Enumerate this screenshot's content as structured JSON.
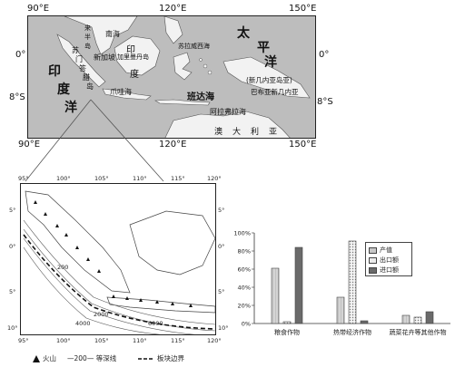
{
  "top_map": {
    "lon_labels": [
      "90°E",
      "120°E",
      "150°E"
    ],
    "lat_labels": [
      "0°",
      "8°S"
    ],
    "oceans": {
      "indian": [
        "印",
        "度",
        "洋"
      ],
      "pacific": [
        "太",
        "平",
        "洋"
      ]
    },
    "seas": {
      "south_china": "南海",
      "sulu": "苏拉威西海",
      "java": "爪哇海",
      "banda": "班达海",
      "arafura": "阿拉弗拉海"
    },
    "places": {
      "malay": [
        "来",
        "半",
        "岛"
      ],
      "sumatra": [
        "苏",
        "门",
        "答",
        "腊",
        "岛"
      ],
      "singapore": "新加坡",
      "kalimantan": "加里曼丹岛",
      "indonesia_short": "印",
      "indonesia_short2": "度",
      "new_guinea": "(新几内亚岛亚)",
      "png": "巴布亚新几内亚",
      "australia": [
        "澳",
        "大",
        "利",
        "亚"
      ]
    }
  },
  "bottom_map": {
    "top_ticks": [
      "95°",
      "100°",
      "105°",
      "110°",
      "115°",
      "120°"
    ],
    "bottom_ticks": [
      "95°",
      "100°",
      "105°",
      "110°",
      "115°",
      "120°"
    ],
    "left_ticks": [
      "5°",
      "0°",
      "5°",
      "10°"
    ],
    "right_ticks": [
      "5°",
      "0°",
      "5°",
      "10°"
    ],
    "depth_labels": [
      "200",
      "2000",
      "4000",
      "6000"
    ],
    "legend": {
      "volcano": "火山",
      "isobath": "—200— 等深线",
      "boundary": "板块边界"
    }
  },
  "bar_legend": [
    "产值",
    "出口额",
    "进口额"
  ],
  "chart_data": {
    "type": "bar",
    "categories": [
      "粮食作物",
      "热带经济作物",
      "蔬菜花卉等其他作物"
    ],
    "series": [
      {
        "name": "产值",
        "values": [
          61,
          29,
          9
        ]
      },
      {
        "name": "出口额",
        "values": [
          2,
          91,
          7
        ]
      },
      {
        "name": "进口额",
        "values": [
          84,
          3,
          13
        ]
      }
    ],
    "y_ticks": [
      "0%",
      "20%",
      "40%",
      "60%",
      "80%",
      "100%"
    ],
    "ylim": [
      0,
      100
    ],
    "grid": false,
    "legend_position": "top-right",
    "colors": {
      "output": "#c8c8c8",
      "export": "#ececec",
      "import": "#6a6a6a"
    }
  }
}
